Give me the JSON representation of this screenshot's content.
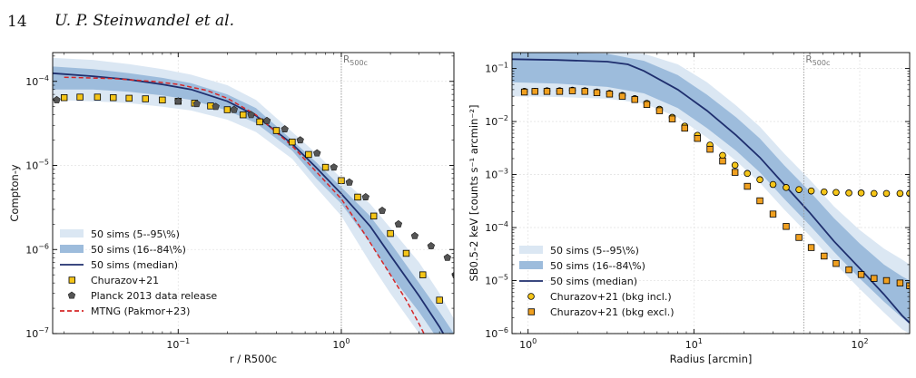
{
  "header": {
    "page_number": "14",
    "authors": "U. P. Steinwandel et al."
  },
  "chart_data": [
    {
      "type": "line",
      "xscale": "log",
      "yscale": "log",
      "xlim": [
        0.017,
        4.9
      ],
      "ylim": [
        1e-07,
        0.00022
      ],
      "xlabel": "r / R500c",
      "ylabel": "Compton-y",
      "xticks": [
        {
          "v": 0.1,
          "b": "10",
          "e": "−1"
        },
        {
          "v": 1,
          "b": "10",
          "e": "0"
        }
      ],
      "yticks": [
        {
          "v": 1e-07,
          "b": "10",
          "e": "−7"
        },
        {
          "v": 1e-06,
          "b": "10",
          "e": "−6"
        },
        {
          "v": 1e-05,
          "b": "10",
          "e": "−5"
        },
        {
          "v": 0.0001,
          "b": "10",
          "e": "−4"
        }
      ],
      "vline": {
        "x": 1.0,
        "label": "R500c"
      },
      "grid": true,
      "legend_position": "lower-left",
      "colors": {
        "band_95": "#dbe7f3",
        "band_84": "#9dbcdc",
        "median": "#1f2f6e",
        "churazov": "#f5c518",
        "planck": "#555555",
        "mtng": "#d62728"
      },
      "series": [
        {
          "name": "50 sims (5--95\\%)",
          "kind": "band",
          "style": "band_95",
          "x": [
            0.017,
            0.03,
            0.05,
            0.08,
            0.12,
            0.2,
            0.3,
            0.5,
            0.7,
            1.0,
            1.5,
            2.0,
            3.0,
            4.0,
            4.9
          ],
          "lo": [
            6e-05,
            5.8e-05,
            5.5e-05,
            5e-05,
            4.5e-05,
            3.5e-05,
            2.5e-05,
            1.2e-05,
            5.5e-06,
            2.5e-06,
            7e-07,
            3e-07,
            1e-07,
            5e-08,
            3e-08
          ],
          "hi": [
            0.00019,
            0.00018,
            0.00016,
            0.00014,
            0.00012,
            9e-05,
            6e-05,
            2.5e-05,
            1.4e-05,
            7e-06,
            3.5e-06,
            1.8e-06,
            7e-07,
            3e-07,
            1.5e-07
          ]
        },
        {
          "name": "50 sims (16--84\\%)",
          "kind": "band",
          "style": "band_84",
          "x": [
            0.017,
            0.03,
            0.05,
            0.08,
            0.12,
            0.2,
            0.3,
            0.5,
            0.7,
            1.0,
            1.5,
            2.0,
            3.0,
            4.0,
            4.9
          ],
          "lo": [
            8e-05,
            8e-05,
            7.5e-05,
            6.8e-05,
            6e-05,
            4.5e-05,
            3.2e-05,
            1.5e-05,
            7e-06,
            3.5e-06,
            1.2e-06,
            5e-07,
            1.8e-07,
            8e-08,
            5e-08
          ],
          "hi": [
            0.00015,
            0.00014,
            0.000125,
            0.00011,
            9.5e-05,
            7e-05,
            4.8e-05,
            2e-05,
            1.1e-05,
            5.5e-06,
            2.5e-06,
            1.2e-06,
            4e-07,
            1.8e-07,
            1e-07
          ]
        },
        {
          "name": "50 sims (median)",
          "kind": "line",
          "style": "median",
          "x": [
            0.017,
            0.03,
            0.05,
            0.08,
            0.12,
            0.2,
            0.3,
            0.5,
            0.7,
            1.0,
            1.5,
            2.0,
            3.0,
            4.0,
            4.5
          ],
          "y": [
            0.000125,
            0.000115,
            0.000105,
            9.2e-05,
            8e-05,
            5.8e-05,
            3.9e-05,
            1.8e-05,
            9.5e-06,
            4.6e-06,
            1.9e-06,
            8.5e-07,
            2.8e-07,
            1.2e-07,
            8e-08
          ]
        },
        {
          "name": "Churazov+21",
          "kind": "marker",
          "style": "churazov",
          "marker": "square",
          "x": [
            0.02,
            0.025,
            0.032,
            0.04,
            0.05,
            0.063,
            0.08,
            0.1,
            0.126,
            0.158,
            0.2,
            0.25,
            0.316,
            0.4,
            0.5,
            0.63,
            0.8,
            1.0,
            1.26,
            1.58,
            2.0,
            2.5,
            3.16,
            4.0
          ],
          "y": [
            6.4e-05,
            6.5e-05,
            6.5e-05,
            6.4e-05,
            6.3e-05,
            6.2e-05,
            6e-05,
            5.8e-05,
            5.5e-05,
            5.1e-05,
            4.6e-05,
            4e-05,
            3.3e-05,
            2.6e-05,
            1.9e-05,
            1.35e-05,
            9.5e-06,
            6.6e-06,
            4.2e-06,
            2.5e-06,
            1.55e-06,
            9e-07,
            5e-07,
            2.5e-07
          ]
        },
        {
          "name": "Planck 2013 data release",
          "kind": "marker",
          "style": "planck",
          "marker": "pentagon",
          "x": [
            0.018,
            0.1,
            0.13,
            0.17,
            0.22,
            0.28,
            0.35,
            0.45,
            0.56,
            0.71,
            0.9,
            1.12,
            1.41,
            1.78,
            2.24,
            2.82,
            3.55,
            4.47,
            5.0
          ],
          "y": [
            6e-05,
            5.8e-05,
            5.4e-05,
            5e-05,
            4.6e-05,
            4e-05,
            3.4e-05,
            2.7e-05,
            2e-05,
            1.4e-05,
            9.5e-06,
            6.3e-06,
            4.2e-06,
            2.9e-06,
            2e-06,
            1.45e-06,
            1.1e-06,
            8e-07,
            5e-07
          ]
        },
        {
          "name": "MTNG (Pakmor+23)",
          "kind": "line",
          "style": "mtng",
          "dashed": true,
          "x": [
            0.02,
            0.04,
            0.07,
            0.1,
            0.15,
            0.2,
            0.3,
            0.5,
            0.7,
            1.0,
            1.4,
            2.0,
            2.5,
            3.0,
            3.3
          ],
          "y": [
            0.000112,
            0.000108,
            0.0001,
            9.2e-05,
            7.8e-05,
            6.3e-05,
            4e-05,
            1.7e-05,
            8.5e-06,
            4e-06,
            1.5e-06,
            5e-07,
            2.5e-07,
            1.3e-07,
            9e-08
          ]
        }
      ]
    },
    {
      "type": "line",
      "xscale": "log",
      "yscale": "log",
      "xlim": [
        0.8,
        200
      ],
      "ylim": [
        1e-06,
        0.2
      ],
      "xlabel": "Radius [arcmin]",
      "ylabel": "SB0.5-2 keV [counts s⁻¹ arcmin⁻²]",
      "xticks": [
        {
          "v": 1,
          "b": "10",
          "e": "0"
        },
        {
          "v": 10,
          "b": "10",
          "e": "1"
        },
        {
          "v": 100,
          "b": "10",
          "e": "2"
        }
      ],
      "yticks": [
        {
          "v": 1e-06,
          "b": "10",
          "e": "−6"
        },
        {
          "v": 1e-05,
          "b": "10",
          "e": "−5"
        },
        {
          "v": 0.0001,
          "b": "10",
          "e": "−4"
        },
        {
          "v": 0.001,
          "b": "10",
          "e": "−3"
        },
        {
          "v": 0.01,
          "b": "10",
          "e": "−2"
        },
        {
          "v": 0.1,
          "b": "10",
          "e": "−1"
        }
      ],
      "vline": {
        "x": 46,
        "label": "R500c"
      },
      "grid": true,
      "legend_position": "lower-left",
      "colors": {
        "band_95": "#dbe7f3",
        "band_84": "#9dbcdc",
        "median": "#1f2f6e",
        "churazov": "#f5c518",
        "churazov_excl": "#f0a020"
      },
      "series": [
        {
          "name": "50 sims (5--95\\%)",
          "kind": "band",
          "style": "band_95",
          "x": [
            0.8,
            1.5,
            3,
            5,
            8,
            12,
            18,
            25,
            35,
            50,
            70,
            100,
            140,
            180,
            200
          ],
          "lo": [
            0.03,
            0.029,
            0.027,
            0.022,
            0.012,
            0.005,
            0.0018,
            0.0007,
            0.00022,
            7e-05,
            2.2e-05,
            7e-06,
            2.5e-06,
            1.2e-06,
            1e-06
          ],
          "hi": [
            0.2,
            0.2,
            0.2,
            0.19,
            0.12,
            0.055,
            0.02,
            0.008,
            0.0025,
            0.0008,
            0.00025,
            9e-05,
            4e-05,
            2.5e-05,
            2e-05
          ]
        },
        {
          "name": "50 sims (16--84\\%)",
          "kind": "band",
          "style": "band_84",
          "x": [
            0.8,
            1.5,
            3,
            5,
            8,
            12,
            18,
            25,
            35,
            50,
            70,
            100,
            140,
            180,
            200
          ],
          "lo": [
            0.055,
            0.052,
            0.045,
            0.034,
            0.018,
            0.0075,
            0.0028,
            0.0011,
            0.00035,
            0.00011,
            3.5e-05,
            1.1e-05,
            4e-06,
            2e-06,
            1.5e-06
          ],
          "hi": [
            0.2,
            0.2,
            0.19,
            0.14,
            0.075,
            0.032,
            0.012,
            0.0048,
            0.0015,
            0.00048,
            0.00015,
            5e-05,
            2e-05,
            1.2e-05,
            1e-05
          ]
        },
        {
          "name": "50 sims (median)",
          "kind": "line",
          "style": "median",
          "x": [
            0.8,
            1.5,
            3,
            4,
            5,
            8,
            12,
            18,
            25,
            35,
            50,
            70,
            100,
            140,
            180,
            200
          ],
          "y": [
            0.15,
            0.145,
            0.135,
            0.12,
            0.09,
            0.04,
            0.016,
            0.0055,
            0.0021,
            0.00065,
            0.00019,
            5.5e-05,
            1.7e-05,
            5.5e-06,
            2.2e-06,
            1.6e-06
          ]
        },
        {
          "name": "Churazov+21 (bkg incl.)",
          "kind": "marker",
          "style": "churazov",
          "marker": "circle",
          "x": [
            0.95,
            1.1,
            1.3,
            1.55,
            1.85,
            2.2,
            2.6,
            3.1,
            3.7,
            4.4,
            5.2,
            6.2,
            7.4,
            8.8,
            10.5,
            12.5,
            14.9,
            17.7,
            21,
            25,
            30,
            36,
            43,
            51,
            61,
            72,
            86,
            102,
            122,
            145,
            175,
            200
          ],
          "y": [
            0.037,
            0.037,
            0.038,
            0.038,
            0.039,
            0.038,
            0.036,
            0.034,
            0.031,
            0.027,
            0.022,
            0.017,
            0.012,
            0.0082,
            0.0055,
            0.0036,
            0.0023,
            0.0015,
            0.00105,
            0.0008,
            0.00065,
            0.00057,
            0.00052,
            0.00049,
            0.00047,
            0.00046,
            0.00045,
            0.00045,
            0.00044,
            0.00044,
            0.00044,
            0.00044
          ]
        },
        {
          "name": "Churazov+21 (bkg excl.)",
          "kind": "marker",
          "style": "churazov_excl",
          "marker": "square",
          "x": [
            0.95,
            1.1,
            1.3,
            1.55,
            1.85,
            2.2,
            2.6,
            3.1,
            3.7,
            4.4,
            5.2,
            6.2,
            7.4,
            8.8,
            10.5,
            12.5,
            14.9,
            17.7,
            21,
            25,
            30,
            36,
            43,
            51,
            61,
            72,
            86,
            102,
            122,
            145,
            175,
            200
          ],
          "y": [
            0.036,
            0.037,
            0.037,
            0.037,
            0.038,
            0.037,
            0.035,
            0.033,
            0.03,
            0.026,
            0.021,
            0.016,
            0.0112,
            0.0075,
            0.0048,
            0.003,
            0.0018,
            0.0011,
            0.0006,
            0.00032,
            0.00018,
            0.000105,
            6.5e-05,
            4.2e-05,
            2.9e-05,
            2.1e-05,
            1.6e-05,
            1.3e-05,
            1.1e-05,
            1e-05,
            9e-06,
            8e-06
          ]
        }
      ]
    }
  ]
}
